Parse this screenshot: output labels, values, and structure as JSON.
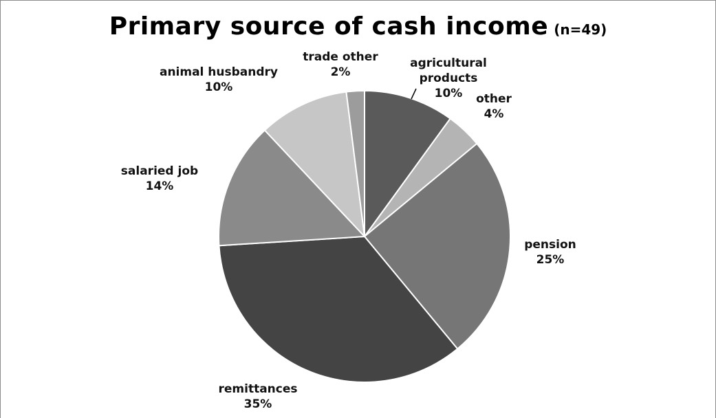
{
  "chart_data": {
    "type": "pie",
    "title": "Primary source of cash income",
    "subtitle": "(n=49)",
    "slices": [
      {
        "name": "agricultural products",
        "label_lines": [
          "agricultural",
          "products",
          "10%"
        ],
        "value": 10,
        "value_label": "10%",
        "color": "#5a5a5a"
      },
      {
        "name": "other",
        "label_lines": [
          "other",
          "4%"
        ],
        "value": 4,
        "value_label": "4%",
        "color": "#b4b4b4"
      },
      {
        "name": "pension",
        "label_lines": [
          "pension",
          "25%"
        ],
        "value": 25,
        "value_label": "25%",
        "color": "#767676"
      },
      {
        "name": "remittances",
        "label_lines": [
          "remittances",
          "35%"
        ],
        "value": 35,
        "value_label": "35%",
        "color": "#444444"
      },
      {
        "name": "salaried job",
        "label_lines": [
          "salaried job",
          "14%"
        ],
        "value": 14,
        "value_label": "14%",
        "color": "#8a8a8a"
      },
      {
        "name": "animal husbandry",
        "label_lines": [
          "animal husbandry",
          "10%"
        ],
        "value": 10,
        "value_label": "10%",
        "color": "#c6c6c6"
      },
      {
        "name": "trade other",
        "label_lines": [
          "trade other",
          "2%"
        ],
        "value": 2,
        "value_label": "2%",
        "color": "#9c9c9c"
      }
    ]
  }
}
